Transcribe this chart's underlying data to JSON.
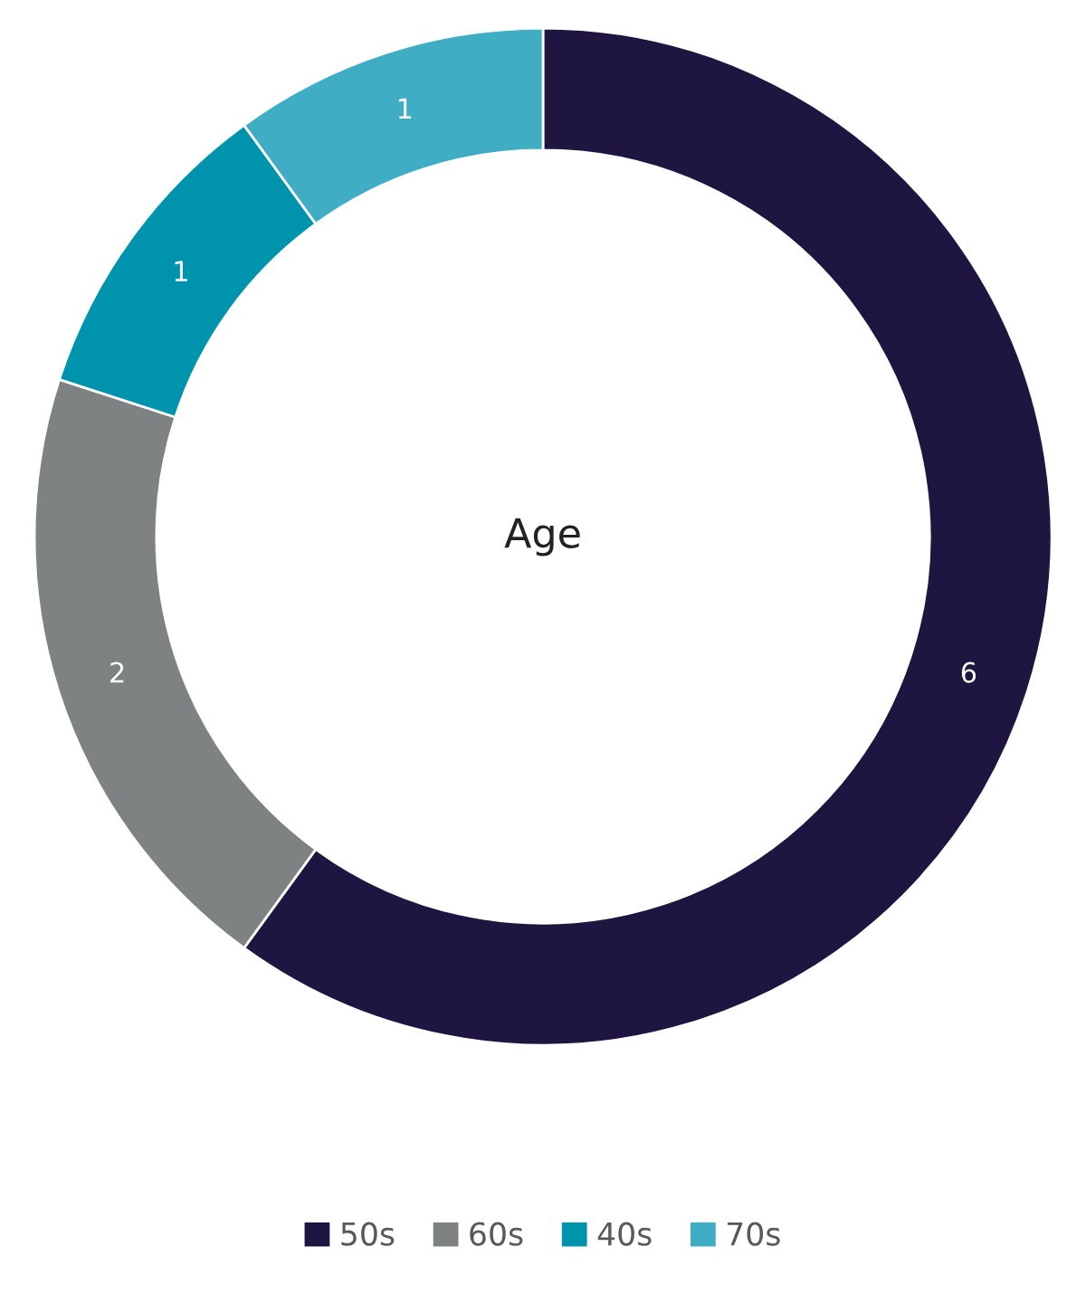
{
  "chart_data": {
    "type": "donut",
    "title": "Age",
    "categories": [
      "50s",
      "60s",
      "40s",
      "70s"
    ],
    "values": [
      6,
      2,
      1,
      1
    ],
    "colors": [
      "#1e1640",
      "#7f8282",
      "#0093ad",
      "#3fadc4"
    ],
    "data_labels": true,
    "legend": "bottom"
  }
}
